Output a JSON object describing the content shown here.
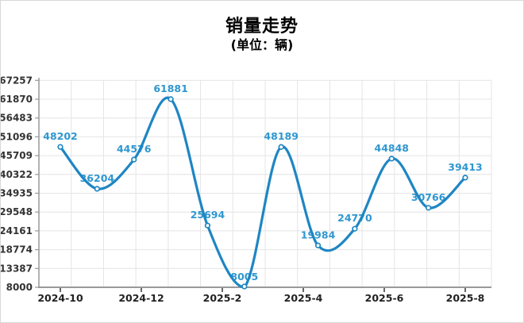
{
  "title": "销量走势",
  "subtitle": "(单位：辆)",
  "chart_data": {
    "type": "line",
    "smooth": true,
    "grid": true,
    "legend": false,
    "title": "销量走势",
    "subtitle": "(单位：辆)",
    "values": [
      48202,
      36204,
      44576,
      61881,
      25694,
      8005,
      48189,
      19984,
      24770,
      44848,
      30766,
      39413
    ],
    "point_labels": [
      "48202",
      "36204",
      "44576",
      "61881",
      "25694",
      "8005",
      "48189",
      "19984",
      "24770",
      "44848",
      "30766",
      "39413"
    ],
    "x_tick_labels": [
      "2024-10",
      "2024-12",
      "2025-2",
      "2025-4",
      "2025-6",
      "2025-8"
    ],
    "y_ticks": [
      8000,
      13387,
      18774,
      24161,
      29548,
      34935,
      40322,
      45709,
      51096,
      56483,
      61870,
      67257
    ],
    "ylim": [
      8000,
      67257
    ],
    "colors": {
      "line": "#1e86c3",
      "point_fill": "#ffffff",
      "point_label": "#2f97d0",
      "axis": "#999999",
      "grid": "#e4e4e4",
      "x_tick_text": "#222222",
      "y_tick_text": "#333333",
      "title_text": "#000000"
    }
  }
}
